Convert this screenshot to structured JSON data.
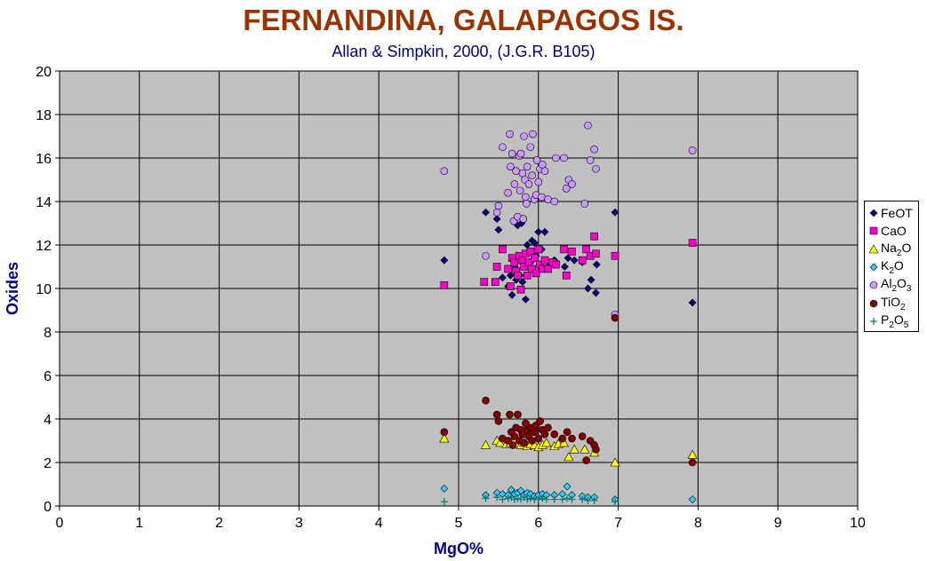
{
  "chart_data": {
    "type": "scatter",
    "title": "FERNANDINA,  GALAPAGOS IS.",
    "subtitle": "Allan & Simpkin, 2000, (J.G.R. B105)",
    "xlabel": "MgO%",
    "ylabel": "Oxides",
    "xlim": [
      0,
      10
    ],
    "ylim": [
      0,
      20
    ],
    "xticks": [
      "0",
      "1",
      "2",
      "3",
      "4",
      "5",
      "6",
      "7",
      "8",
      "9",
      "10"
    ],
    "yticks": [
      "0",
      "2",
      "4",
      "6",
      "8",
      "10",
      "12",
      "14",
      "16",
      "18",
      "20"
    ],
    "grid": true,
    "legend_position": "right",
    "series": [
      {
        "name": "FeOT",
        "label_main": "FeOT",
        "label_sub": "",
        "label_tail": "",
        "marker": "diamond",
        "color": "#000080",
        "points": [
          [
            4.82,
            11.3
          ],
          [
            5.34,
            13.5
          ],
          [
            5.48,
            13.2
          ],
          [
            5.5,
            12.7
          ],
          [
            5.55,
            10.5
          ],
          [
            5.62,
            10.1
          ],
          [
            5.65,
            10.6
          ],
          [
            5.67,
            9.7
          ],
          [
            5.7,
            11.0
          ],
          [
            5.72,
            10.4
          ],
          [
            5.74,
            12.9
          ],
          [
            5.77,
            10.6
          ],
          [
            5.79,
            13.0
          ],
          [
            5.8,
            10.3
          ],
          [
            5.82,
            11.6
          ],
          [
            5.84,
            9.5
          ],
          [
            5.86,
            12.0
          ],
          [
            5.9,
            11.2
          ],
          [
            5.92,
            12.2
          ],
          [
            5.95,
            12.1
          ],
          [
            5.97,
            11.5
          ],
          [
            6.0,
            12.6
          ],
          [
            6.04,
            11.8
          ],
          [
            6.08,
            12.6
          ],
          [
            6.12,
            11.0
          ],
          [
            6.2,
            11.3
          ],
          [
            6.33,
            11.0
          ],
          [
            6.37,
            11.4
          ],
          [
            6.45,
            11.3
          ],
          [
            6.55,
            11.2
          ],
          [
            6.62,
            10.0
          ],
          [
            6.66,
            10.4
          ],
          [
            6.72,
            9.8
          ],
          [
            6.73,
            11.1
          ],
          [
            6.96,
            13.5
          ],
          [
            7.93,
            9.35
          ]
        ]
      },
      {
        "name": "CaO",
        "label_main": "CaO",
        "label_sub": "",
        "label_tail": "",
        "marker": "square",
        "color": "#FF00CC",
        "points": [
          [
            4.82,
            10.15
          ],
          [
            5.32,
            10.3
          ],
          [
            5.46,
            10.3
          ],
          [
            5.48,
            11.0
          ],
          [
            5.55,
            11.8
          ],
          [
            5.62,
            10.9
          ],
          [
            5.65,
            10.1
          ],
          [
            5.67,
            11.4
          ],
          [
            5.7,
            11.2
          ],
          [
            5.72,
            10.8
          ],
          [
            5.74,
            10.6
          ],
          [
            5.76,
            11.5
          ],
          [
            5.78,
            9.95
          ],
          [
            5.8,
            11.3
          ],
          [
            5.82,
            11.0
          ],
          [
            5.84,
            11.6
          ],
          [
            5.86,
            10.6
          ],
          [
            5.88,
            11.2
          ],
          [
            5.9,
            11.7
          ],
          [
            5.92,
            10.9
          ],
          [
            5.95,
            11.4
          ],
          [
            5.97,
            10.7
          ],
          [
            6.0,
            11.8
          ],
          [
            6.02,
            11.1
          ],
          [
            6.05,
            10.9
          ],
          [
            6.08,
            11.3
          ],
          [
            6.12,
            10.9
          ],
          [
            6.18,
            11.2
          ],
          [
            6.22,
            11.1
          ],
          [
            6.32,
            11.8
          ],
          [
            6.35,
            10.6
          ],
          [
            6.42,
            11.7
          ],
          [
            6.55,
            11.3
          ],
          [
            6.6,
            11.8
          ],
          [
            6.65,
            11.5
          ],
          [
            6.7,
            12.4
          ],
          [
            6.72,
            11.6
          ],
          [
            6.96,
            11.5
          ],
          [
            7.93,
            12.1
          ]
        ]
      },
      {
        "name": "Na2O",
        "label_main": "Na",
        "label_sub": "2",
        "label_tail": "O",
        "marker": "triangle",
        "color": "#FFFF00",
        "points": [
          [
            4.82,
            3.1
          ],
          [
            5.34,
            2.8
          ],
          [
            5.48,
            3.0
          ],
          [
            5.52,
            2.9
          ],
          [
            5.6,
            2.85
          ],
          [
            5.65,
            2.9
          ],
          [
            5.7,
            3.0
          ],
          [
            5.74,
            2.85
          ],
          [
            5.78,
            2.8
          ],
          [
            5.82,
            2.9
          ],
          [
            5.86,
            2.75
          ],
          [
            5.9,
            2.85
          ],
          [
            5.95,
            2.8
          ],
          [
            6.0,
            2.7
          ],
          [
            6.05,
            2.8
          ],
          [
            6.1,
            2.9
          ],
          [
            6.2,
            2.75
          ],
          [
            6.25,
            2.85
          ],
          [
            6.32,
            2.9
          ],
          [
            6.38,
            2.25
          ],
          [
            6.45,
            2.6
          ],
          [
            6.58,
            2.6
          ],
          [
            6.7,
            2.45
          ],
          [
            6.96,
            2.0
          ],
          [
            7.93,
            2.35
          ]
        ]
      },
      {
        "name": "K2O",
        "label_main": "K",
        "label_sub": "2",
        "label_tail": "O",
        "marker": "diamond",
        "color": "#33CCFF",
        "points": [
          [
            4.82,
            0.8
          ],
          [
            5.34,
            0.5
          ],
          [
            5.48,
            0.6
          ],
          [
            5.55,
            0.55
          ],
          [
            5.62,
            0.5
          ],
          [
            5.66,
            0.75
          ],
          [
            5.7,
            0.55
          ],
          [
            5.74,
            0.6
          ],
          [
            5.78,
            0.7
          ],
          [
            5.82,
            0.5
          ],
          [
            5.86,
            0.6
          ],
          [
            5.9,
            0.55
          ],
          [
            5.95,
            0.45
          ],
          [
            6.0,
            0.5
          ],
          [
            6.05,
            0.55
          ],
          [
            6.1,
            0.5
          ],
          [
            6.2,
            0.5
          ],
          [
            6.3,
            0.55
          ],
          [
            6.36,
            0.9
          ],
          [
            6.42,
            0.5
          ],
          [
            6.55,
            0.45
          ],
          [
            6.62,
            0.4
          ],
          [
            6.7,
            0.4
          ],
          [
            6.96,
            0.3
          ],
          [
            7.93,
            0.3
          ]
        ]
      },
      {
        "name": "Al2O3",
        "label_main": "Al",
        "label_sub": "2",
        "label_tail": "O",
        "label_sub2": "3",
        "marker": "circle",
        "color": "#CC99FF",
        "points": [
          [
            4.82,
            15.4
          ],
          [
            5.34,
            11.5
          ],
          [
            5.48,
            13.5
          ],
          [
            5.5,
            13.8
          ],
          [
            5.55,
            16.5
          ],
          [
            5.62,
            14.4
          ],
          [
            5.64,
            17.1
          ],
          [
            5.65,
            15.6
          ],
          [
            5.67,
            16.2
          ],
          [
            5.69,
            13.1
          ],
          [
            5.7,
            14.8
          ],
          [
            5.72,
            15.4
          ],
          [
            5.74,
            13.3
          ],
          [
            5.76,
            16.1
          ],
          [
            5.77,
            14.5
          ],
          [
            5.78,
            16.2
          ],
          [
            5.8,
            15.3
          ],
          [
            5.81,
            13.2
          ],
          [
            5.82,
            17.0
          ],
          [
            5.83,
            15.0
          ],
          [
            5.84,
            14.2
          ],
          [
            5.85,
            13.9
          ],
          [
            5.86,
            15.6
          ],
          [
            5.88,
            14.8
          ],
          [
            5.9,
            16.5
          ],
          [
            5.92,
            15.2
          ],
          [
            5.93,
            17.1
          ],
          [
            5.95,
            14.1
          ],
          [
            5.97,
            14.3
          ],
          [
            5.98,
            15.9
          ],
          [
            6.0,
            14.9
          ],
          [
            6.02,
            15.5
          ],
          [
            6.04,
            14.2
          ],
          [
            6.05,
            15.7
          ],
          [
            6.08,
            15.4
          ],
          [
            6.12,
            14.1
          ],
          [
            6.2,
            14.0
          ],
          [
            6.22,
            16.0
          ],
          [
            6.32,
            16.0
          ],
          [
            6.35,
            14.6
          ],
          [
            6.38,
            15.0
          ],
          [
            6.42,
            14.8
          ],
          [
            6.58,
            13.9
          ],
          [
            6.62,
            17.5
          ],
          [
            6.65,
            15.9
          ],
          [
            6.7,
            16.4
          ],
          [
            6.72,
            15.5
          ],
          [
            6.96,
            8.8
          ],
          [
            7.93,
            16.35
          ]
        ]
      },
      {
        "name": "TiO2",
        "label_main": "TiO",
        "label_sub": "2",
        "label_tail": "",
        "marker": "circle",
        "color": "#800000",
        "points": [
          [
            4.82,
            3.4
          ],
          [
            5.34,
            4.85
          ],
          [
            5.48,
            4.2
          ],
          [
            5.5,
            3.9
          ],
          [
            5.55,
            3.1
          ],
          [
            5.62,
            3.0
          ],
          [
            5.64,
            4.2
          ],
          [
            5.66,
            3.4
          ],
          [
            5.68,
            2.8
          ],
          [
            5.7,
            3.2
          ],
          [
            5.72,
            3.6
          ],
          [
            5.74,
            4.2
          ],
          [
            5.76,
            3.0
          ],
          [
            5.78,
            3.5
          ],
          [
            5.8,
            3.3
          ],
          [
            5.82,
            2.9
          ],
          [
            5.84,
            3.8
          ],
          [
            5.86,
            3.5
          ],
          [
            5.88,
            3.2
          ],
          [
            5.9,
            3.6
          ],
          [
            5.92,
            3.0
          ],
          [
            5.95,
            3.4
          ],
          [
            5.97,
            3.7
          ],
          [
            6.0,
            3.1
          ],
          [
            6.02,
            3.9
          ],
          [
            6.05,
            3.5
          ],
          [
            6.08,
            3.3
          ],
          [
            6.12,
            3.6
          ],
          [
            6.2,
            3.3
          ],
          [
            6.3,
            3.1
          ],
          [
            6.36,
            3.4
          ],
          [
            6.42,
            3.1
          ],
          [
            6.55,
            3.2
          ],
          [
            6.6,
            2.1
          ],
          [
            6.65,
            3.0
          ],
          [
            6.7,
            2.8
          ],
          [
            6.72,
            2.6
          ],
          [
            6.96,
            8.65
          ],
          [
            7.93,
            2.0
          ]
        ]
      },
      {
        "name": "P2O5",
        "label_main": "P",
        "label_sub": "2",
        "label_tail": "O",
        "label_sub2": "5",
        "marker": "plus",
        "color": "#008080",
        "points": [
          [
            4.82,
            0.2
          ],
          [
            5.34,
            0.35
          ],
          [
            5.48,
            0.4
          ],
          [
            5.55,
            0.3
          ],
          [
            5.62,
            0.35
          ],
          [
            5.66,
            0.4
          ],
          [
            5.7,
            0.3
          ],
          [
            5.74,
            0.35
          ],
          [
            5.78,
            0.3
          ],
          [
            5.82,
            0.4
          ],
          [
            5.86,
            0.3
          ],
          [
            5.9,
            0.35
          ],
          [
            5.95,
            0.3
          ],
          [
            6.0,
            0.3
          ],
          [
            6.05,
            0.35
          ],
          [
            6.1,
            0.3
          ],
          [
            6.2,
            0.3
          ],
          [
            6.3,
            0.3
          ],
          [
            6.36,
            0.35
          ],
          [
            6.42,
            0.3
          ],
          [
            6.55,
            0.3
          ],
          [
            6.62,
            0.25
          ],
          [
            6.7,
            0.25
          ],
          [
            6.96,
            0.2
          ]
        ]
      }
    ]
  }
}
